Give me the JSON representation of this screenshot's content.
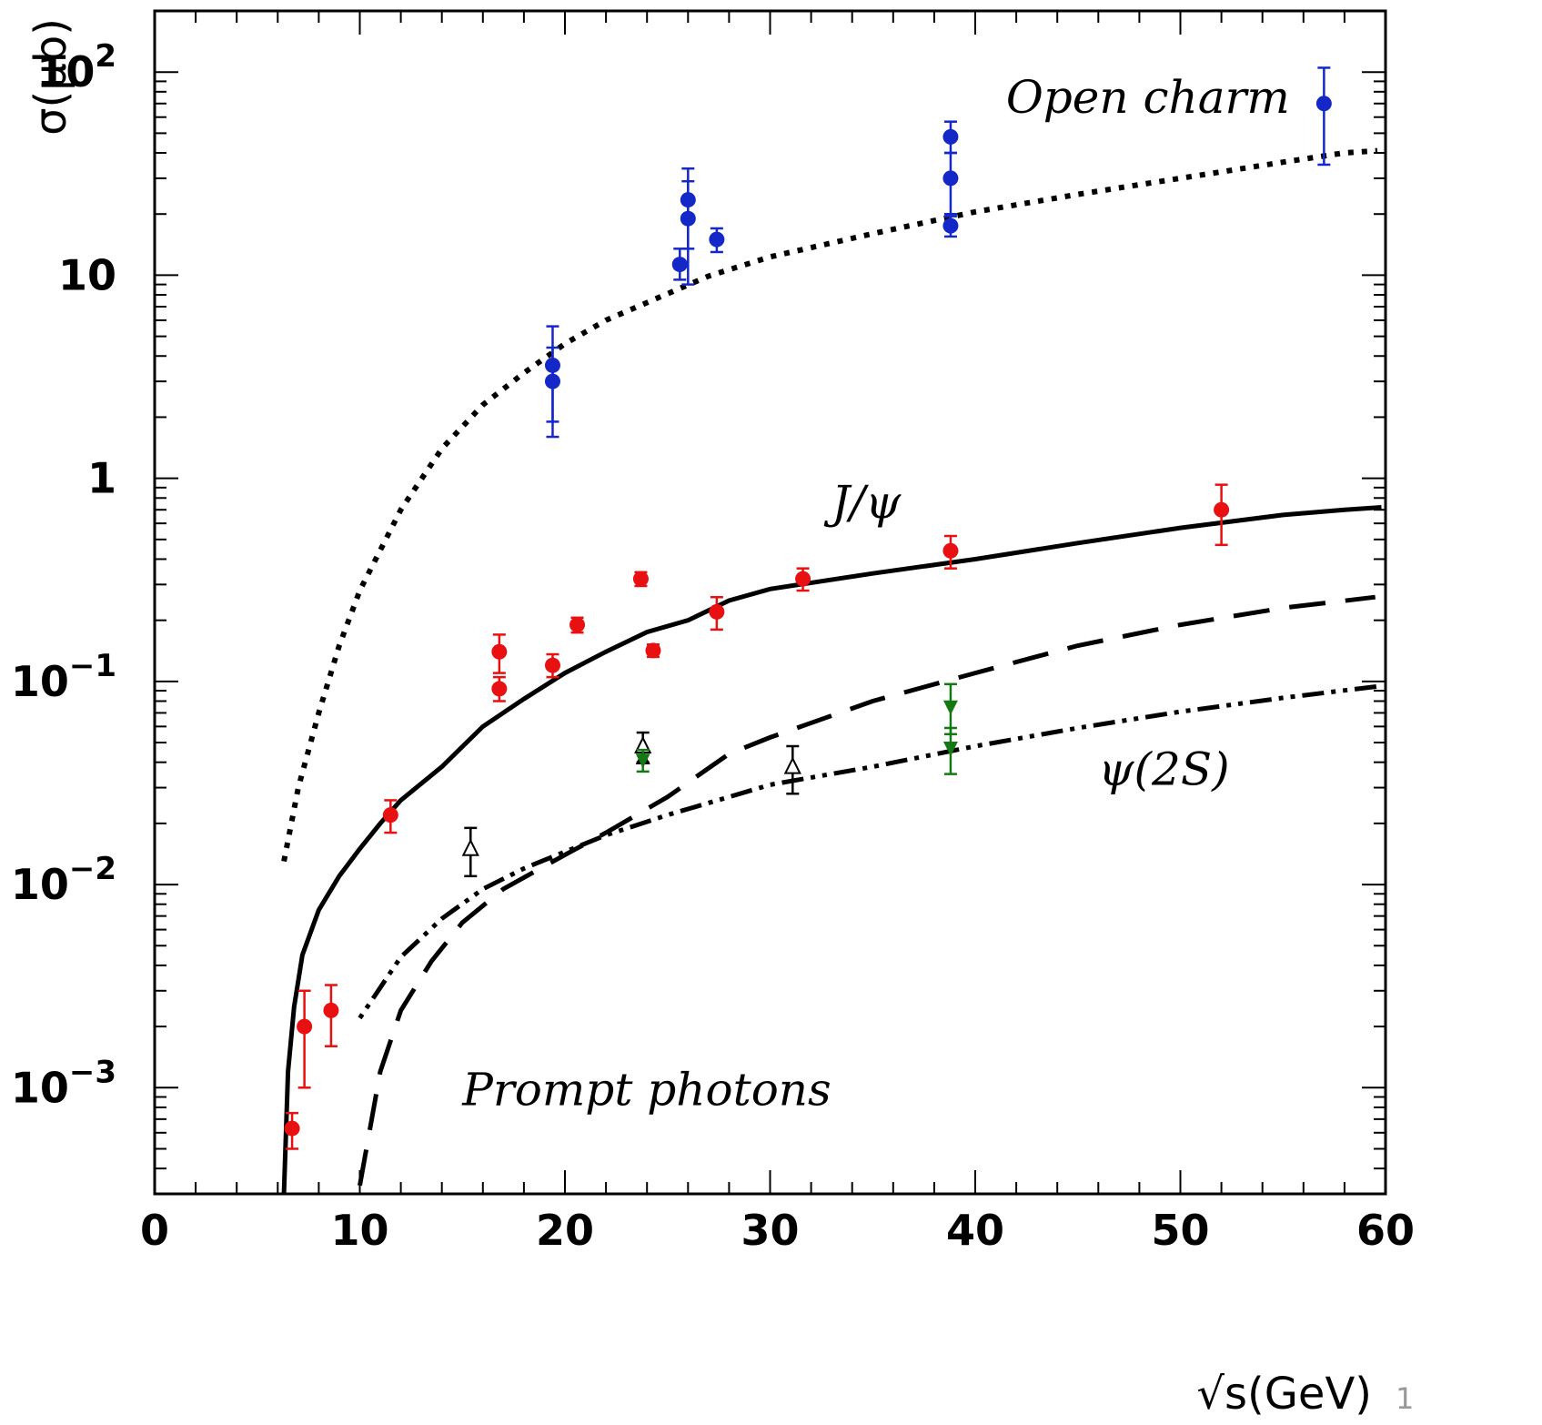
{
  "chart_data": {
    "type": "scatter",
    "title": "",
    "xlabel": "√s(GeV)",
    "ylabel": "σ(μb)",
    "xlim": [
      0,
      60
    ],
    "ylim": [
      0.0003,
      200
    ],
    "yscale": "log",
    "grid": false,
    "x_tick_labels": [
      "0",
      "10",
      "20",
      "30",
      "40",
      "50",
      "60"
    ],
    "x_ticks": [
      0,
      10,
      20,
      30,
      40,
      50,
      60
    ],
    "y_ticks": [
      {
        "value": 0.001,
        "base": "10",
        "exp": "−3"
      },
      {
        "value": 0.01,
        "base": "10",
        "exp": "−2"
      },
      {
        "value": 0.1,
        "base": "10",
        "exp": "−1"
      },
      {
        "value": 1,
        "base": "1",
        "exp": ""
      },
      {
        "value": 10,
        "base": "10",
        "exp": ""
      },
      {
        "value": 100,
        "base": "10",
        "exp": "2"
      }
    ],
    "annotations": [
      {
        "text": "Open charm",
        "x": 41.5,
        "y": 63
      },
      {
        "text": "J/ψ",
        "x": 33,
        "y": 0.64
      },
      {
        "text": "ψ(2S)",
        "x": 46,
        "y": 0.031
      },
      {
        "text": "Prompt photons",
        "x": 15,
        "y": 0.00082
      }
    ],
    "series": [
      {
        "marker": "circle",
        "color": "#1428c8",
        "points": [
          {
            "x": 19.4,
            "y": 3.6,
            "lo": 1.9,
            "hi": 5.6
          },
          {
            "x": 19.4,
            "y": 3.0,
            "lo": 1.6,
            "hi": 4.4
          },
          {
            "x": 25.6,
            "y": 11.3,
            "lo": 9.5,
            "hi": 13.5
          },
          {
            "x": 26.0,
            "y": 23.5,
            "lo": 13.5,
            "hi": 33.5
          },
          {
            "x": 26.0,
            "y": 19.0,
            "lo": 9.0,
            "hi": 29.0
          },
          {
            "x": 27.4,
            "y": 15.0,
            "lo": 13.0,
            "hi": 17.0
          },
          {
            "x": 38.8,
            "y": 48.0,
            "lo": 40.0,
            "hi": 57.0
          },
          {
            "x": 38.8,
            "y": 30.0,
            "lo": 20.0,
            "hi": 40.0
          },
          {
            "x": 38.8,
            "y": 17.5,
            "lo": 15.5,
            "hi": 19.5
          },
          {
            "x": 57.0,
            "y": 70.0,
            "lo": 35.0,
            "hi": 105.0
          }
        ]
      },
      {
        "marker": "circle",
        "color": "#e81010",
        "points": [
          {
            "x": 6.7,
            "y": 0.00063,
            "lo": 0.0005,
            "hi": 0.00075
          },
          {
            "x": 7.3,
            "y": 0.002,
            "lo": 0.001,
            "hi": 0.003
          },
          {
            "x": 8.6,
            "y": 0.0024,
            "lo": 0.0016,
            "hi": 0.0032
          },
          {
            "x": 11.5,
            "y": 0.022,
            "lo": 0.018,
            "hi": 0.026
          },
          {
            "x": 16.8,
            "y": 0.14,
            "lo": 0.11,
            "hi": 0.17
          },
          {
            "x": 16.8,
            "y": 0.092,
            "lo": 0.08,
            "hi": 0.105
          },
          {
            "x": 19.4,
            "y": 0.12,
            "lo": 0.105,
            "hi": 0.136
          },
          {
            "x": 20.6,
            "y": 0.19,
            "lo": 0.174,
            "hi": 0.206
          },
          {
            "x": 23.7,
            "y": 0.32,
            "lo": 0.295,
            "hi": 0.345
          },
          {
            "x": 24.3,
            "y": 0.142,
            "lo": 0.132,
            "hi": 0.152
          },
          {
            "x": 27.4,
            "y": 0.22,
            "lo": 0.18,
            "hi": 0.26
          },
          {
            "x": 31.6,
            "y": 0.32,
            "lo": 0.28,
            "hi": 0.36
          },
          {
            "x": 38.8,
            "y": 0.44,
            "lo": 0.36,
            "hi": 0.52
          },
          {
            "x": 52.0,
            "y": 0.7,
            "lo": 0.47,
            "hi": 0.93
          }
        ]
      },
      {
        "marker": "open-triangle-up",
        "color": "#000000",
        "points": [
          {
            "x": 15.4,
            "y": 0.015,
            "lo": 0.011,
            "hi": 0.019
          },
          {
            "x": 23.8,
            "y": 0.048,
            "lo": 0.04,
            "hi": 0.056
          },
          {
            "x": 31.1,
            "y": 0.038,
            "lo": 0.028,
            "hi": 0.048
          }
        ]
      },
      {
        "marker": "filled-triangle-up",
        "color": "#000000",
        "points": [
          {
            "x": 23.8,
            "y": 0.042
          }
        ]
      },
      {
        "marker": "filled-triangle-down",
        "color": "#137a13",
        "points": [
          {
            "x": 23.8,
            "y": 0.041,
            "lo": 0.036,
            "hi": 0.046
          },
          {
            "x": 38.8,
            "y": 0.075,
            "lo": 0.055,
            "hi": 0.097
          },
          {
            "x": 38.8,
            "y": 0.047,
            "lo": 0.035,
            "hi": 0.059
          }
        ]
      }
    ],
    "curves": [
      {
        "style": "dotted",
        "points": [
          [
            6.3,
            0.013
          ],
          [
            7,
            0.03
          ],
          [
            8,
            0.07
          ],
          [
            9,
            0.15
          ],
          [
            10,
            0.28
          ],
          [
            12,
            0.7
          ],
          [
            14,
            1.4
          ],
          [
            16,
            2.3
          ],
          [
            18,
            3.3
          ],
          [
            20,
            4.6
          ],
          [
            22,
            6.0
          ],
          [
            25,
            8.1
          ],
          [
            27,
            9.9
          ],
          [
            30,
            12.3
          ],
          [
            35,
            16.0
          ],
          [
            40,
            20.5
          ],
          [
            45,
            25.0
          ],
          [
            50,
            30.0
          ],
          [
            55,
            36.0
          ],
          [
            58,
            40.0
          ],
          [
            59.6,
            41.0
          ]
        ]
      },
      {
        "style": "solid",
        "points": [
          [
            6.3,
            0.0003
          ],
          [
            6.5,
            0.0012
          ],
          [
            6.8,
            0.0025
          ],
          [
            7.2,
            0.0045
          ],
          [
            8,
            0.0075
          ],
          [
            9,
            0.011
          ],
          [
            10,
            0.015
          ],
          [
            11,
            0.02
          ],
          [
            12,
            0.026
          ],
          [
            14,
            0.038
          ],
          [
            16,
            0.06
          ],
          [
            18,
            0.082
          ],
          [
            20,
            0.11
          ],
          [
            22,
            0.14
          ],
          [
            24,
            0.175
          ],
          [
            26,
            0.2
          ],
          [
            28,
            0.25
          ],
          [
            30,
            0.285
          ],
          [
            35,
            0.34
          ],
          [
            40,
            0.4
          ],
          [
            45,
            0.48
          ],
          [
            50,
            0.57
          ],
          [
            55,
            0.66
          ],
          [
            58,
            0.7
          ],
          [
            59.8,
            0.72
          ]
        ]
      },
      {
        "style": "dashed",
        "points": [
          [
            10,
            0.00033
          ],
          [
            11,
            0.0012
          ],
          [
            12,
            0.0024
          ],
          [
            13.5,
            0.0042
          ],
          [
            15,
            0.0065
          ],
          [
            17,
            0.0095
          ],
          [
            20,
            0.014
          ],
          [
            22,
            0.018
          ],
          [
            25,
            0.027
          ],
          [
            28,
            0.044
          ],
          [
            30,
            0.053
          ],
          [
            35,
            0.08
          ],
          [
            40,
            0.11
          ],
          [
            45,
            0.15
          ],
          [
            50,
            0.19
          ],
          [
            55,
            0.23
          ],
          [
            59.5,
            0.26
          ]
        ]
      },
      {
        "style": "dash-dot",
        "points": [
          [
            10,
            0.0022
          ],
          [
            12,
            0.0044
          ],
          [
            14,
            0.0068
          ],
          [
            16,
            0.0095
          ],
          [
            18,
            0.012
          ],
          [
            20,
            0.0145
          ],
          [
            22,
            0.0175
          ],
          [
            25,
            0.022
          ],
          [
            28,
            0.027
          ],
          [
            30,
            0.031
          ],
          [
            35,
            0.038
          ],
          [
            40,
            0.048
          ],
          [
            45,
            0.059
          ],
          [
            50,
            0.071
          ],
          [
            55,
            0.083
          ],
          [
            59.8,
            0.095
          ]
        ]
      }
    ]
  },
  "footer": {
    "page_number_fragment": "1"
  }
}
